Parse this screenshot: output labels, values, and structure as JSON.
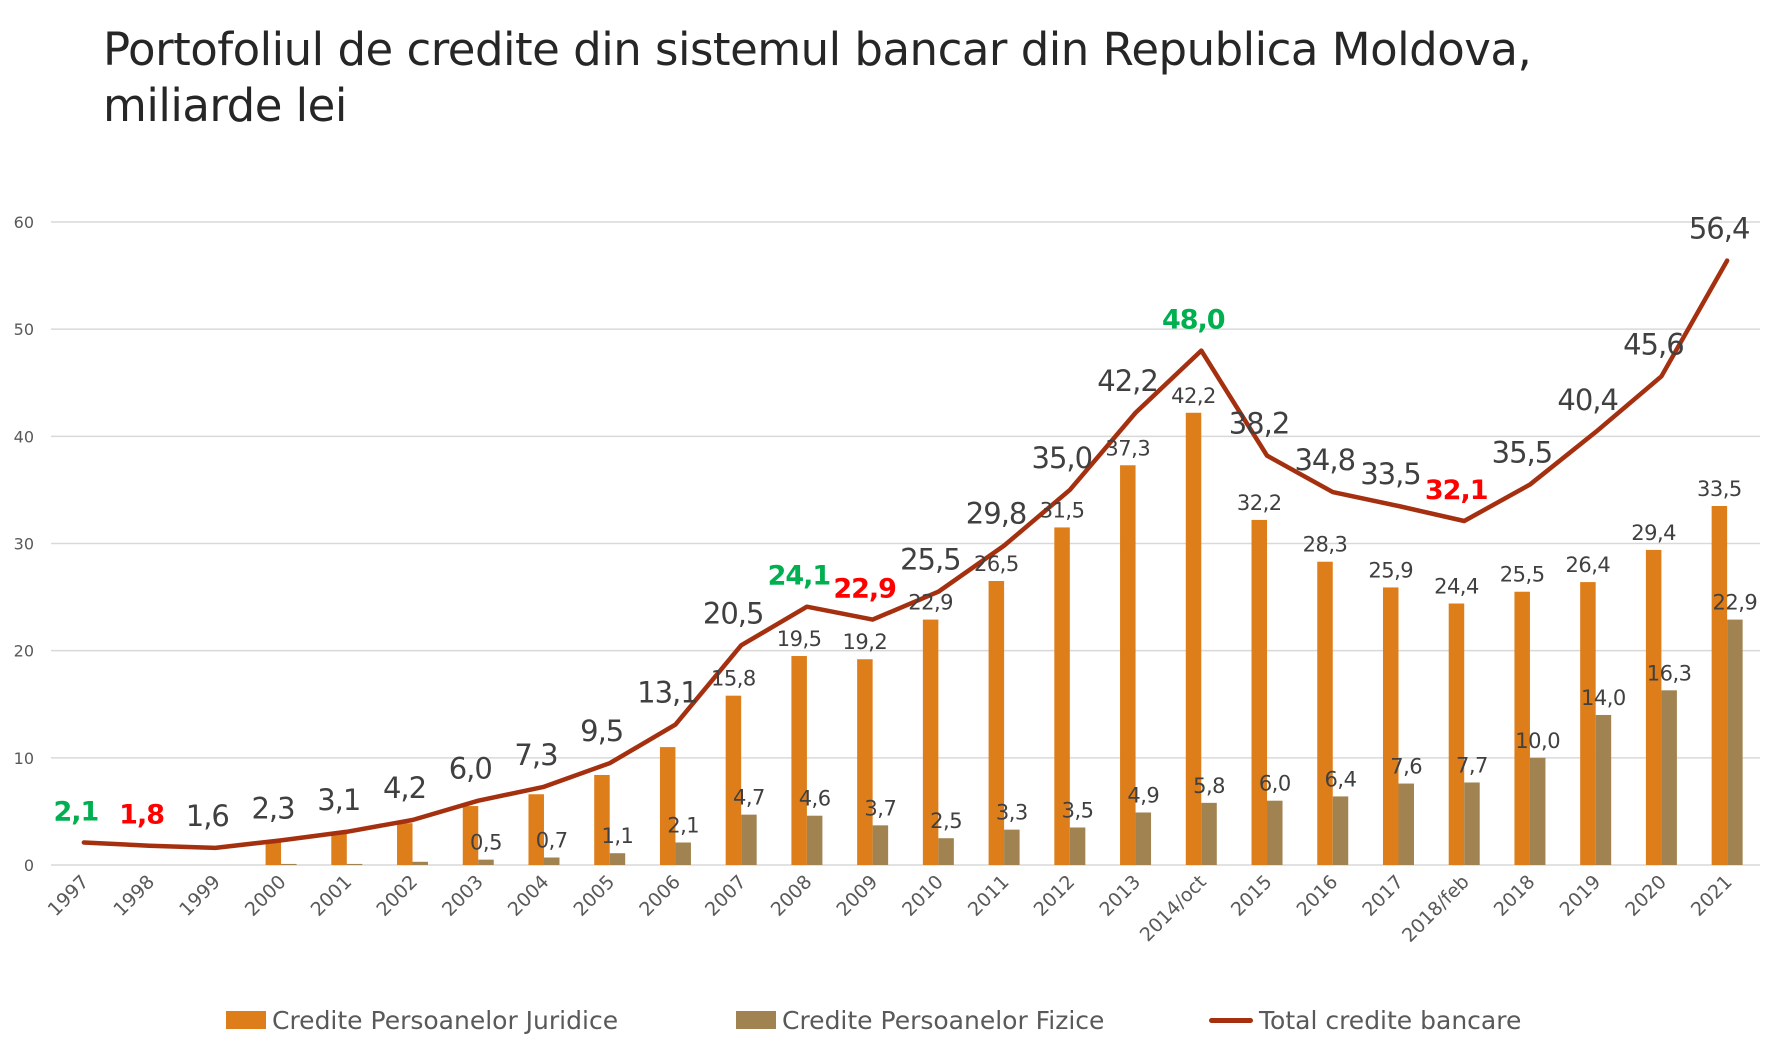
{
  "title": {
    "line1": "Portofoliul de credite din sistemul bancar din Republica Moldova,",
    "line2": "miliarde lei"
  },
  "colors": {
    "juridice": "#DD7E1A",
    "fizice": "#A08350",
    "total": "#A5300F",
    "highlight_green": "#00B050",
    "highlight_red": "#FF0000",
    "label_default": "#404040",
    "axis_text": "#595959",
    "gridline": "#D9D9D9"
  },
  "chart_data": {
    "type": "bar",
    "title": "Portofoliul de credite din sistemul bancar din Republica Moldova, miliarde lei",
    "xlabel": "",
    "ylabel": "",
    "ylim": [
      0,
      60
    ],
    "yticks": [
      0,
      10,
      20,
      30,
      40,
      50,
      60
    ],
    "grid": true,
    "legend_position": "bottom",
    "categories": [
      "1997",
      "1998",
      "1999",
      "2000",
      "2001",
      "2002",
      "2003",
      "2004",
      "2005",
      "2006",
      "2007",
      "2008",
      "2009",
      "2010",
      "2011",
      "2012",
      "2013",
      "2014/oct",
      "2015",
      "2016",
      "2017",
      "2018/feb",
      "2018",
      "2019",
      "2020",
      "2021"
    ],
    "series": [
      {
        "name": "Credite Persoanelor Juridice",
        "type": "bar",
        "values": [
          null,
          null,
          null,
          2.2,
          3.0,
          3.9,
          5.5,
          6.6,
          8.4,
          11.0,
          15.8,
          19.5,
          19.2,
          22.9,
          26.5,
          31.5,
          37.3,
          42.2,
          32.2,
          28.3,
          25.9,
          24.4,
          25.5,
          26.4,
          29.4,
          33.5
        ],
        "labels": [
          "",
          "",
          "",
          "",
          "",
          "",
          "",
          "",
          "",
          "",
          "15,8",
          "19,5",
          "19,2",
          "22,9",
          "26,5",
          "31,5",
          "37,3",
          "42,2",
          "32,2",
          "28,3",
          "25,9",
          "24,4",
          "25,5",
          "26,4",
          "29,4",
          "33,5"
        ]
      },
      {
        "name": "Credite Persoanelor Fizice",
        "type": "bar",
        "values": [
          null,
          null,
          null,
          0.1,
          0.1,
          0.3,
          0.5,
          0.7,
          1.1,
          2.1,
          4.7,
          4.6,
          3.7,
          2.5,
          3.3,
          3.5,
          4.9,
          5.8,
          6.0,
          6.4,
          7.6,
          7.7,
          10.0,
          14.0,
          16.3,
          22.9
        ],
        "labels": [
          "",
          "",
          "",
          "",
          "",
          "",
          "0,5",
          "0,7",
          "1,1",
          "2,1",
          "4,7",
          "4,6",
          "3,7",
          "2,5",
          "3,3",
          "3,5",
          "4,9",
          "5,8",
          "6,0",
          "6,4",
          "7,6",
          "7,7",
          "10,0",
          "14,0",
          "16,3",
          "22,9"
        ]
      },
      {
        "name": "Total credite bancare",
        "type": "line",
        "values": [
          2.1,
          1.8,
          1.6,
          2.3,
          3.1,
          4.2,
          6.0,
          7.3,
          9.5,
          13.1,
          20.5,
          24.1,
          22.9,
          25.5,
          29.8,
          35.0,
          42.2,
          48.0,
          38.2,
          34.8,
          33.5,
          32.1,
          35.5,
          40.4,
          45.6,
          56.4
        ],
        "labels": [
          "2,1",
          "1,8",
          "1,6",
          "2,3",
          "3,1",
          "4,2",
          "6,0",
          "7,3",
          "9,5",
          "13,1",
          "20,5",
          "24,1",
          "22,9",
          "25,5",
          "29,8",
          "35,0",
          "42,2",
          "48,0",
          "38,2",
          "34,8",
          "33,5",
          "32,1",
          "35,5",
          "40,4",
          "45,6",
          "56,4"
        ],
        "label_highlights": [
          "green",
          "red",
          "",
          "",
          "",
          "",
          "",
          "",
          "",
          "",
          "",
          "green",
          "red",
          "",
          "",
          "",
          "",
          "green",
          "",
          "",
          "",
          "red",
          "",
          "",
          "",
          ""
        ]
      }
    ]
  },
  "legend": {
    "items": [
      {
        "label": "Credite Persoanelor Juridice",
        "kind": "box",
        "color": "#DD7E1A"
      },
      {
        "label": "Credite Persoanelor Fizice",
        "kind": "box",
        "color": "#A08350"
      },
      {
        "label": "Total credite bancare",
        "kind": "line",
        "color": "#A5300F"
      }
    ]
  }
}
